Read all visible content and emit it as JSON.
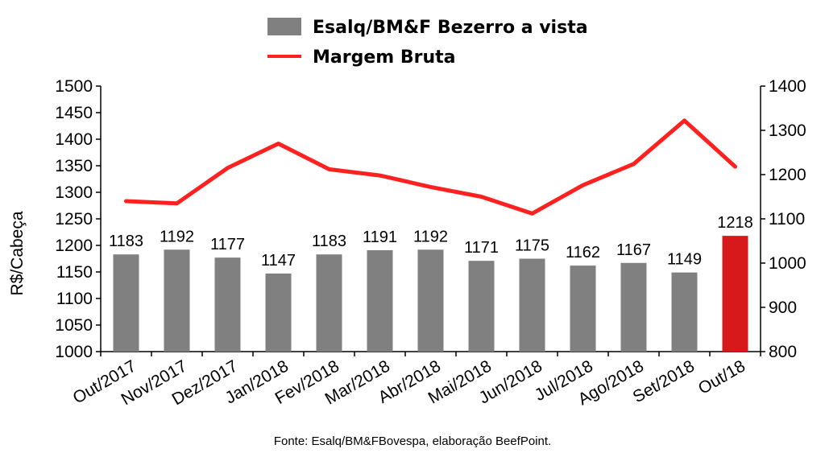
{
  "chart_data": {
    "type": "bar",
    "categories": [
      "Out/2017",
      "Nov/2017",
      "Dez/2017",
      "Jan/2018",
      "Fev/2018",
      "Mar/2018",
      "Abr/2018",
      "Mai/2018",
      "Jun/2018",
      "Jul/2018",
      "Ago/2018",
      "Set/2018",
      "Out/18"
    ],
    "series": [
      {
        "name": "Esalq/BM&F Bezerro a vista",
        "type": "bar",
        "axis": "left",
        "color": "#808080",
        "highlight_color": "#d7191c",
        "highlight_index": 12,
        "values": [
          1183,
          1192,
          1177,
          1147,
          1183,
          1191,
          1192,
          1171,
          1175,
          1162,
          1167,
          1149,
          1218
        ],
        "data_labels": [
          "1183",
          "1192",
          "1177",
          "1147",
          "1183",
          "1191",
          "1192",
          "1171",
          "1175",
          "1162",
          "1167",
          "1149",
          "1218"
        ]
      },
      {
        "name": "Margem Bruta",
        "type": "line",
        "axis": "right",
        "color": "#ff2020",
        "values": [
          1140,
          1135,
          1215,
          1270,
          1212,
          1198,
          1172,
          1150,
          1112,
          1176,
          1224,
          1322,
          1218
        ]
      }
    ],
    "ylabel": "R$/Cabeça",
    "ylim": [
      1000,
      1500
    ],
    "yticks": [
      "1000",
      "1050",
      "1100",
      "1150",
      "1200",
      "1250",
      "1300",
      "1350",
      "1400",
      "1450",
      "1500"
    ],
    "y2lim": [
      800,
      1400
    ],
    "y2ticks": [
      "800",
      "900",
      "1000",
      "1100",
      "1200",
      "1300",
      "1400"
    ],
    "legend_position": "top-center",
    "grid": false,
    "source": "Fonte: Esalq/BM&FBovespa, elaboração BeefPoint."
  }
}
